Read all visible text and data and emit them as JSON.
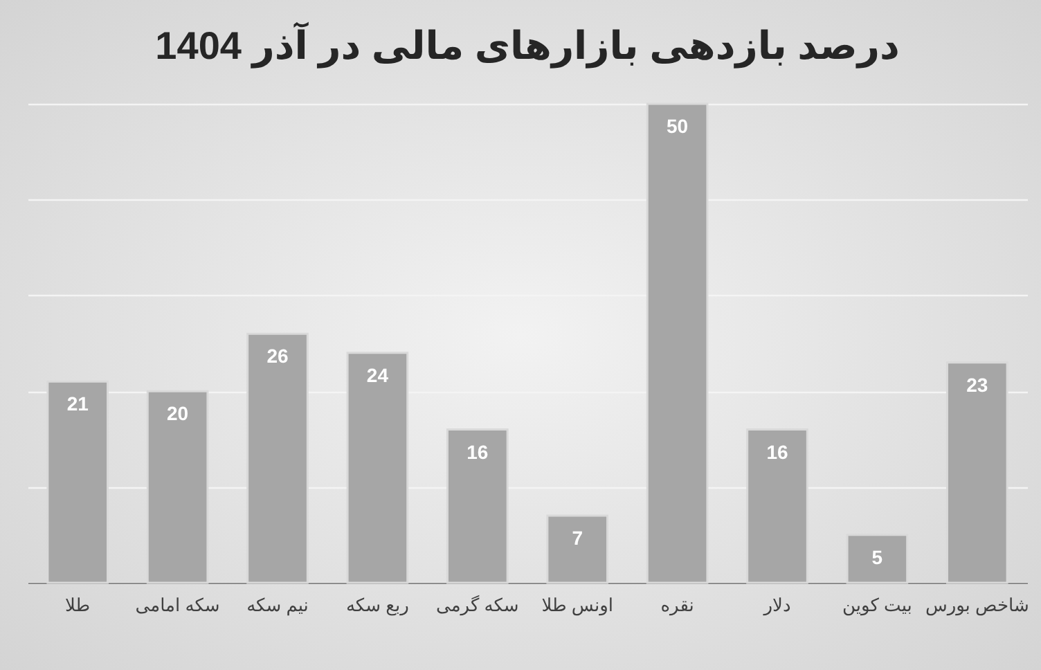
{
  "chart_data": {
    "type": "bar",
    "title": "درصد بازدهی بازارهای مالی در آذر 1404",
    "categories": [
      "طلا",
      "سکه امامی",
      "نیم سکه",
      "ربع سکه",
      "سکه گرمی",
      "اونس طلا",
      "نقره",
      "دلار",
      "بیت کوین",
      "شاخص بورس"
    ],
    "values": [
      21,
      20,
      26,
      24,
      16,
      7,
      50,
      16,
      5,
      23
    ],
    "color": "#a6a6a6",
    "ylim": [
      0,
      50
    ],
    "yticks": [
      {
        "value": 0,
        "label": null
      },
      {
        "value": 10,
        "label": null
      },
      {
        "value": 20,
        "label": null
      },
      {
        "value": 30,
        "label": null
      },
      {
        "value": 40,
        "label": null
      },
      {
        "value": 50,
        "label": null
      }
    ],
    "grid": "y",
    "tick_labels": "x",
    "data_labels": true
  }
}
